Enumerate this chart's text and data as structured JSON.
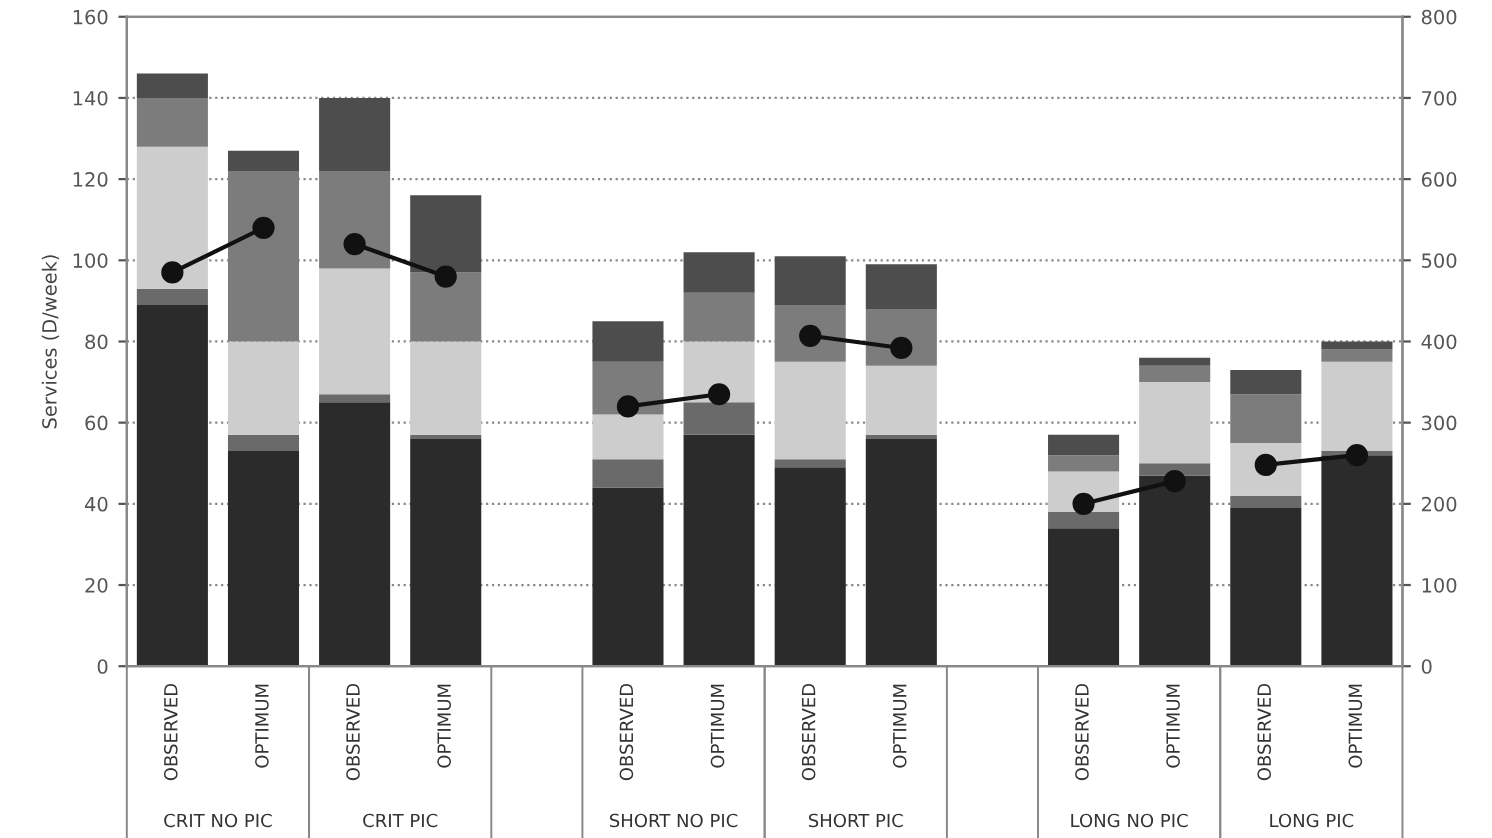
{
  "chart_data": {
    "type": "bar",
    "stacked": true,
    "ylabel": "Services (D/week)",
    "categories": [
      "OBSERVED",
      "OPTIMUM",
      "OBSERVED",
      "OPTIMUM",
      null,
      "OBSERVED",
      "OPTIMUM",
      "OBSERVED",
      "OPTIMUM",
      null,
      "OBSERVED",
      "OPTIMUM",
      "OBSERVED",
      "OPTIMUM"
    ],
    "annotations": [
      "CRIT NO PIC",
      "CRIT PIC",
      "SHORT NO PIC",
      "SHORT PIC",
      "LONG NO PIC",
      "LONG PIC"
    ],
    "ylim": [
      0,
      160
    ],
    "yticks": [
      0,
      20,
      40,
      60,
      80,
      100,
      120,
      140,
      160
    ],
    "y2lim": [
      0,
      800
    ],
    "y2ticks": [
      0,
      100,
      200,
      300,
      400,
      500,
      600,
      700,
      800
    ],
    "grid": "y",
    "legend": false,
    "series": [
      {
        "color": "#2b2b2b",
        "values": [
          89,
          53,
          65,
          56,
          null,
          44,
          57,
          49,
          56,
          null,
          34,
          47,
          39,
          52
        ]
      },
      {
        "color": "#6a6a6a",
        "values": [
          4,
          4,
          2,
          1,
          null,
          7,
          8,
          2,
          1,
          null,
          4,
          3,
          3,
          1
        ]
      },
      {
        "color": "#cdcdcd",
        "values": [
          35,
          23,
          31,
          23,
          null,
          11,
          15,
          24,
          17,
          null,
          10,
          20,
          13,
          22
        ]
      },
      {
        "color": "#7c7c7c",
        "values": [
          12,
          42,
          24,
          17,
          null,
          13,
          12,
          14,
          14,
          null,
          4,
          4,
          12,
          3
        ]
      },
      {
        "color": "#4d4d4d",
        "values": [
          6,
          5,
          18,
          19,
          null,
          10,
          10,
          12,
          11,
          null,
          5,
          2,
          6,
          2
        ]
      },
      {
        "type": "line",
        "axis": "y2",
        "color": "#111111",
        "marker": "circle",
        "values": [
          485,
          540,
          null,
          null,
          null,
          null,
          null,
          null,
          null,
          null,
          null,
          null,
          null,
          null
        ]
      },
      {
        "type": "line",
        "axis": "y2",
        "color": "#111111",
        "marker": "circle",
        "values": [
          null,
          null,
          520,
          480,
          null,
          null,
          null,
          null,
          null,
          null,
          null,
          null,
          null,
          null
        ]
      },
      {
        "type": "line",
        "axis": "y2",
        "color": "#111111",
        "marker": "circle",
        "values": [
          null,
          null,
          null,
          null,
          null,
          320,
          335,
          null,
          null,
          null,
          null,
          null,
          null,
          null
        ]
      },
      {
        "type": "line",
        "axis": "y2",
        "color": "#111111",
        "marker": "circle",
        "values": [
          null,
          null,
          null,
          null,
          null,
          null,
          null,
          407,
          392,
          null,
          null,
          null,
          null,
          null
        ]
      },
      {
        "type": "line",
        "axis": "y2",
        "color": "#111111",
        "marker": "circle",
        "values": [
          null,
          null,
          null,
          null,
          null,
          null,
          null,
          null,
          null,
          null,
          200,
          228,
          null,
          null
        ]
      },
      {
        "type": "line",
        "axis": "y2",
        "color": "#111111",
        "marker": "circle",
        "values": [
          null,
          null,
          null,
          null,
          null,
          null,
          null,
          null,
          null,
          null,
          null,
          null,
          248,
          260
        ]
      }
    ]
  }
}
